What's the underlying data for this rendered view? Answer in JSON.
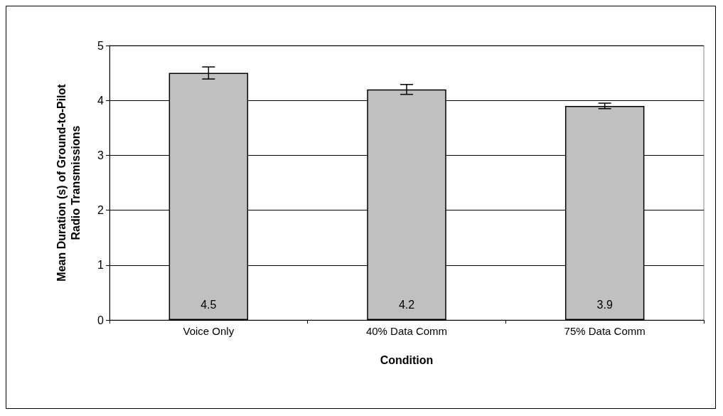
{
  "chart_data": {
    "type": "bar",
    "xlabel": "Condition",
    "ylabel": "Mean Duration (s) of Ground-to-Pilot\nRadio Transmissions",
    "categories": [
      "Voice Only",
      "40% Data Comm",
      "75% Data Comm"
    ],
    "values": [
      4.5,
      4.2,
      3.9
    ],
    "errors": [
      0.11,
      0.09,
      0.05
    ],
    "color": "#c0c0c0",
    "ylim": [
      0,
      5
    ],
    "yticks": [
      0,
      1,
      2,
      3,
      4,
      5
    ],
    "grid": "y",
    "data_labels": true
  }
}
